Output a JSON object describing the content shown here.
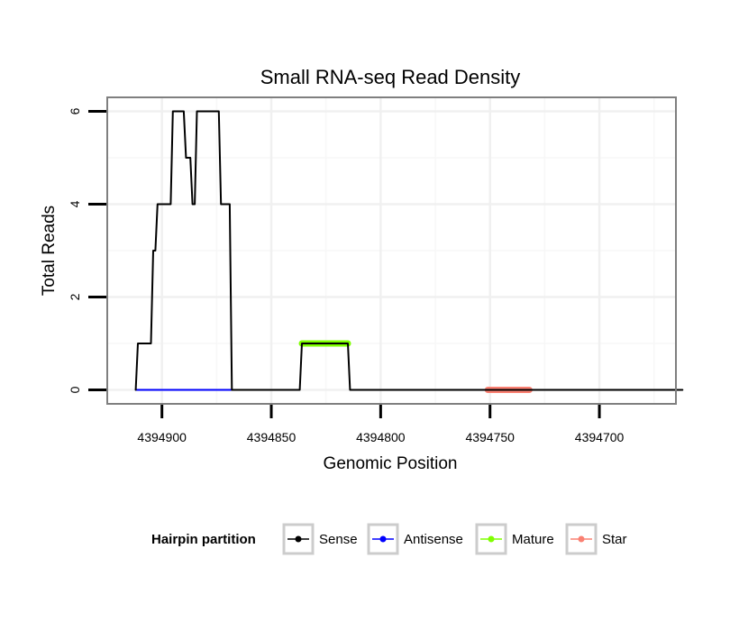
{
  "chart_data": {
    "type": "line",
    "title": "Small RNA-seq Read Density",
    "xlabel": "Genomic Position",
    "ylabel": "Total Reads",
    "x_reversed": true,
    "xlim": [
      4394925,
      4394665
    ],
    "ylim": [
      -0.3,
      6.3
    ],
    "x_ticks": [
      4394900,
      4394850,
      4394800,
      4394750,
      4394700
    ],
    "x_tick_labels": [
      "4394900",
      "4394850",
      "4394800",
      "4394750",
      "4394700"
    ],
    "y_ticks": [
      0,
      2,
      4,
      6
    ],
    "y_tick_labels": [
      "0",
      "2",
      "4",
      "6"
    ],
    "grid": true,
    "legend": {
      "title": "Hairpin partition",
      "position": "bottom",
      "entries": [
        {
          "name": "Sense",
          "color": "#000000"
        },
        {
          "name": "Antisense",
          "color": "#0000ff"
        },
        {
          "name": "Mature",
          "color": "#7fff00"
        },
        {
          "name": "Star",
          "color": "#fa8072"
        }
      ]
    },
    "series": [
      {
        "name": "Sense",
        "color": "#000000",
        "x": [
          4394912,
          4394911,
          4394910,
          4394905,
          4394904,
          4394903,
          4394902,
          4394896,
          4394895,
          4394890,
          4394889,
          4394887,
          4394886,
          4394885,
          4394884,
          4394882,
          4394881,
          4394874,
          4394873,
          4394869,
          4394868,
          4394867,
          4394837,
          4394836,
          4394815,
          4394814,
          4394662
        ],
        "values": [
          0,
          1,
          1,
          1,
          3,
          3,
          4,
          4,
          6,
          6,
          5,
          5,
          4,
          4,
          6,
          6,
          6,
          6,
          4,
          4,
          0,
          0,
          0,
          1,
          1,
          0,
          0
        ]
      },
      {
        "name": "Antisense",
        "color": "#0000ff",
        "x": [
          4394912,
          4394868
        ],
        "values": [
          0,
          0
        ]
      },
      {
        "name": "Mature",
        "color": "#7fff00",
        "x": [
          4394836,
          4394815
        ],
        "values": [
          1,
          1
        ]
      },
      {
        "name": "Star",
        "color": "#fa8072",
        "x": [
          4394751,
          4394732
        ],
        "values": [
          0,
          0
        ]
      }
    ]
  }
}
